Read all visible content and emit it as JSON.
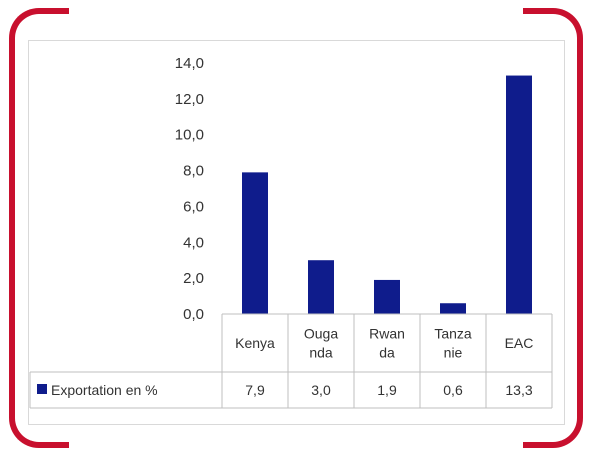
{
  "colors": {
    "accent": "#c8102e",
    "bar": "#0f1c8c",
    "grid": "#d9d9d9"
  },
  "chart_data": {
    "type": "bar",
    "categories": [
      "Kenya",
      "Ouganda",
      "Rwanda",
      "Tanzanie",
      "EAC"
    ],
    "category_label_lines": [
      [
        "Kenya"
      ],
      [
        "Ouga",
        "nda"
      ],
      [
        "Rwan",
        "da"
      ],
      [
        "Tanza",
        "nie"
      ],
      [
        "EAC"
      ]
    ],
    "series": [
      {
        "name": "Exportation en %",
        "values": [
          7.9,
          3.0,
          1.9,
          0.6,
          13.3
        ]
      }
    ],
    "table_values": [
      "7,9",
      "3,0",
      "1,9",
      "0,6",
      "13,3"
    ],
    "y_ticks": [
      "0,0",
      "2,0",
      "4,0",
      "6,0",
      "8,0",
      "10,0",
      "12,0",
      "14,0"
    ],
    "ylim": [
      0,
      14
    ],
    "grid": false,
    "legend": "data-table",
    "title": "",
    "xlabel": "",
    "ylabel": ""
  }
}
